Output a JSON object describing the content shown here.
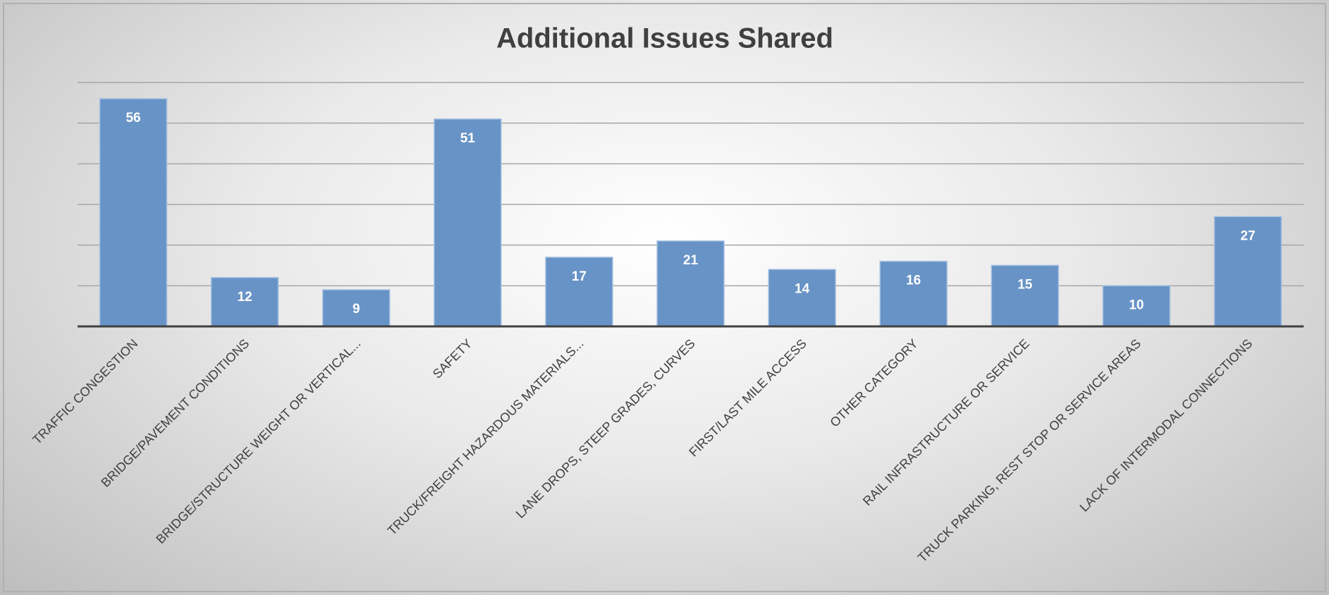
{
  "chart_data": {
    "type": "bar",
    "title": "Additional Issues Shared",
    "categories": [
      "TRAFFIC CONGESTION",
      "BRIDGE/PAVEMENT CONDITIONS",
      "BRIDGE/STRUCTURE WEIGHT OR VERTICAL...",
      "SAFETY",
      "TRUCK/FREIGHT HAZARDOUS MATERIALS...",
      "LANE DROPS, STEEP GRADES, CURVES",
      "FIRST/LAST MILE ACCESS",
      "OTHER CATEGORY",
      "RAIL INFRASTRUCTURE OR SERVICE",
      "TRUCK PARKING, REST STOP OR SERVICE AREAS",
      "LACK OF INTERMODAL CONNECTIONS"
    ],
    "values": [
      56,
      12,
      9,
      51,
      17,
      21,
      14,
      16,
      15,
      10,
      27
    ],
    "color": "#6893c6",
    "ylim": [
      0,
      60
    ],
    "yticks": [
      0,
      10,
      20,
      30,
      40,
      50,
      60
    ],
    "grid": true
  }
}
